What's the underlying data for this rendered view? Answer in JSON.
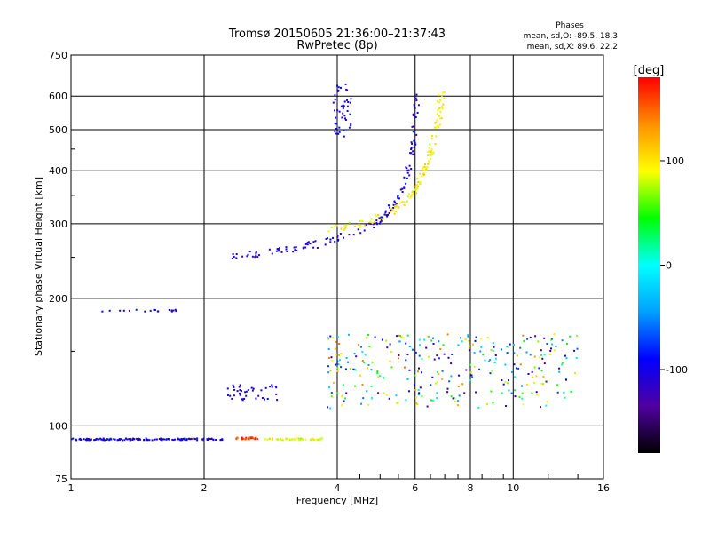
{
  "chart_data": {
    "type": "scatter",
    "title": "Tromsø 20150605 21:36:00–21:37:43",
    "subtitle": "RwPretec (8p)",
    "xlabel": "Frequency [MHz]",
    "ylabel": "Stationary phase Virtual Height [km]",
    "x_scale": "log",
    "y_scale": "log",
    "xlim": [
      1,
      16
    ],
    "ylim": [
      75,
      750
    ],
    "x_ticks": [
      1,
      2,
      4,
      6,
      8,
      10,
      16
    ],
    "y_ticks": [
      75,
      100,
      200,
      300,
      400,
      500,
      600,
      750
    ],
    "grid": true,
    "phase_info": {
      "heading": "Phases",
      "line_o": "mean, sd,O: -89.5, 18.3",
      "line_x": "mean, sd,X: 89.6, 22.2"
    },
    "colorbar": {
      "label": "[deg]",
      "range": [
        -180,
        180
      ],
      "ticks": [
        100,
        0,
        -100
      ],
      "stops": [
        "#000000",
        "#5000a0",
        "#0000ff",
        "#00a0ff",
        "#00ffff",
        "#00ff00",
        "#ffff00",
        "#ff9000",
        "#ff0000"
      ]
    },
    "traces": [
      {
        "name": "",
        "phase": -100,
        "x_range": [
          1,
          2.2
        ],
        "y": 93,
        "count": 140
      },
      {
        "name": "",
        "phase": 160,
        "x_range": [
          2.35,
          2.65
        ],
        "y": 93.5,
        "count": 30
      },
      {
        "name": "",
        "phase": 90,
        "x_range": [
          2.75,
          3.7
        ],
        "y": 93,
        "count": 50
      },
      {
        "name": "",
        "phase": -100,
        "x_range": [
          1.15,
          1.8
        ],
        "y": 187,
        "count": 18
      },
      {
        "name": "",
        "phase": -105,
        "x_range": [
          2.25,
          2.95
        ],
        "y": [
          115,
          125
        ],
        "count": 40
      },
      {
        "name": "",
        "phase": -105,
        "curve": [
          [
            2.3,
            250
          ],
          [
            2.8,
            257
          ],
          [
            3.3,
            264
          ],
          [
            3.8,
            272
          ],
          [
            4.4,
            285
          ],
          [
            5.0,
            305
          ],
          [
            5.4,
            335
          ],
          [
            5.7,
            380
          ],
          [
            5.9,
            440
          ],
          [
            6.0,
            520
          ],
          [
            6.05,
            600
          ]
        ],
        "count": 150
      },
      {
        "name": "",
        "phase": 95,
        "curve": [
          [
            3.8,
            290
          ],
          [
            4.5,
            298
          ],
          [
            5.2,
            315
          ],
          [
            5.8,
            345
          ],
          [
            6.3,
            395
          ],
          [
            6.6,
            460
          ],
          [
            6.8,
            540
          ],
          [
            6.9,
            620
          ]
        ],
        "count": 140
      },
      {
        "name": "",
        "phase": -100,
        "x_range": [
          3.9,
          4.3
        ],
        "y": [
          480,
          640
        ],
        "count": 45
      },
      {
        "name": "",
        "phase": 0,
        "x_range": [
          3.8,
          14
        ],
        "y": [
          110,
          165
        ],
        "count": 320
      }
    ]
  }
}
